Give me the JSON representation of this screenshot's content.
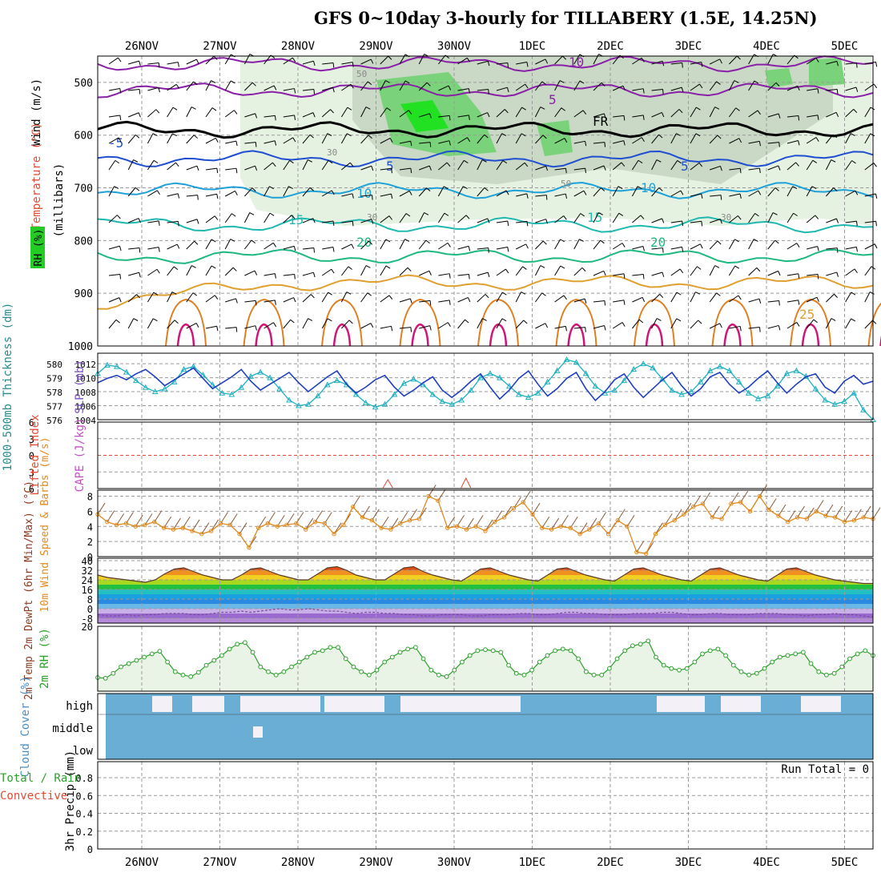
{
  "title": "GFS 0~10day 3-hourly for TILLABERY (1.5E, 14.25N)",
  "dates": [
    "26NOV",
    "27NOV",
    "28NOV",
    "29NOV",
    "30NOV",
    "1DEC",
    "2DEC",
    "3DEC",
    "4DEC",
    "5DEC"
  ],
  "colors": {
    "temp": "#e34a33",
    "wind": "#000000",
    "rh": "#2ca02c",
    "thickness": "#1f3fbf",
    "slp": "#1fb0c0",
    "lifted": "#e34a33",
    "cape": "#c050c0",
    "wind10": "#e08a1e",
    "temp2m": "#e34a33",
    "dewpt": "#7a4f9a",
    "rh2m": "#2ca02c",
    "cloud": "#6aaed6",
    "precip_total": "#2ca02c",
    "precip_conv": "#e34a33"
  },
  "chart_data": [
    {
      "id": "upper-air",
      "type": "heatmap",
      "ylabel_parts": [
        "Wind (m/s)",
        "Temperature (°C)",
        "RH (%)",
        "(millibars)"
      ],
      "yticks": [
        500,
        600,
        700,
        800,
        900,
        1000
      ],
      "ylim": [
        450,
        1000
      ],
      "contour_labels": [
        "10",
        "5",
        "FR",
        "-5",
        "5",
        "5",
        "10",
        "10",
        "15",
        "15",
        "20",
        "20",
        "25",
        "50",
        "30",
        "30",
        "50",
        "30"
      ],
      "isotherms": [
        {
          "value": -10,
          "pressure": 465
        },
        {
          "value": -5,
          "pressure": 515
        },
        {
          "value": 0,
          "pressure": 590
        },
        {
          "value": 5,
          "pressure": 645
        },
        {
          "value": 10,
          "pressure": 705
        },
        {
          "value": 15,
          "pressure": 770
        },
        {
          "value": 20,
          "pressure": 830
        },
        {
          "value": 25,
          "pressure": 880
        }
      ]
    },
    {
      "id": "thickness-slp",
      "type": "line",
      "ylabel_thickness": "1000-500mb Thickness (dm)",
      "ylabel_slp": "SLP (mb)",
      "thickness_ticks": [
        576,
        577,
        578,
        579,
        580
      ],
      "slp_ticks": [
        1004,
        1006,
        1008,
        1010,
        1012
      ],
      "slp_ylim": [
        1004,
        1013.5
      ],
      "thickness": [
        578.5,
        578.8,
        579.0,
        578.7,
        579.1,
        579.4,
        578.9,
        578.3,
        578.7,
        579.1,
        579.5,
        578.8,
        578.1,
        578.5,
        578.9,
        579.4,
        578.6,
        578.0,
        578.4,
        578.8,
        579.2,
        578.5,
        577.9,
        578.4,
        578.9,
        579.3,
        578.4,
        577.8,
        578.2,
        578.7,
        579.0,
        578.2,
        577.6,
        578.0,
        578.5,
        578.9,
        578.0,
        577.5,
        578.0,
        578.6,
        579.1,
        578.2,
        577.4,
        578.0,
        578.8,
        579.3,
        578.4,
        577.6,
        578.1,
        578.8,
        579.2,
        578.1,
        577.3,
        577.9,
        578.7,
        579.1,
        578.2,
        577.5,
        578.1,
        578.7,
        579.2,
        578.3,
        577.6,
        578.1,
        578.9,
        579.2,
        578.4,
        577.8,
        578.2,
        578.8,
        579.3,
        578.5,
        577.8,
        578.4,
        578.9,
        579.1,
        578.2,
        577.8,
        578.6,
        579.0,
        578.4,
        578.6
      ],
      "slp": [
        1010.6,
        1011.8,
        1011.6,
        1010.8,
        1009.6,
        1008.6,
        1008.0,
        1008.4,
        1009.4,
        1011.2,
        1011.6,
        1010.4,
        1009.0,
        1007.8,
        1007.6,
        1008.6,
        1010.2,
        1010.8,
        1010.0,
        1008.4,
        1006.8,
        1006.0,
        1006.2,
        1007.4,
        1009.0,
        1009.6,
        1009.0,
        1007.6,
        1006.4,
        1005.8,
        1006.2,
        1007.6,
        1009.2,
        1009.8,
        1009.0,
        1007.6,
        1006.6,
        1006.2,
        1006.8,
        1008.2,
        1010.0,
        1010.6,
        1010.0,
        1008.8,
        1007.6,
        1007.2,
        1007.8,
        1009.4,
        1011.0,
        1012.6,
        1012.2,
        1010.6,
        1008.8,
        1007.8,
        1008.2,
        1009.6,
        1011.2,
        1012.0,
        1011.4,
        1009.8,
        1008.2,
        1007.6,
        1008.0,
        1009.4,
        1011.0,
        1011.6,
        1011.0,
        1009.4,
        1007.8,
        1007.0,
        1007.4,
        1008.8,
        1010.6,
        1011.0,
        1010.2,
        1008.4,
        1006.8,
        1006.2,
        1006.6,
        1007.8,
        1005.4,
        1004.0
      ]
    },
    {
      "id": "lifted-cape",
      "type": "line",
      "ylabel_lifted": "Lifted Index",
      "ylabel_cape": "CAPE (J/kg)",
      "yticks": [
        -6,
        -3,
        0,
        3,
        6
      ],
      "ytick_labels": [
        "6",
        "3",
        "0",
        "3",
        "6"
      ],
      "ylim": [
        -6,
        6
      ],
      "cape_spikes": [
        {
          "day": 3.1,
          "value": 1
        },
        {
          "day": 4.1,
          "value": 1.2
        }
      ]
    },
    {
      "id": "wind10m",
      "type": "line",
      "ylabel": "10m Wind Speed & Barbs (m/s)",
      "yticks": [
        0,
        2,
        4,
        6,
        8
      ],
      "ylim": [
        0,
        8.8
      ],
      "values": [
        5.6,
        4.6,
        4.2,
        4.4,
        4.0,
        4.2,
        4.6,
        3.8,
        3.6,
        3.8,
        3.4,
        3.0,
        3.4,
        4.4,
        4.2,
        3.0,
        1.2,
        3.8,
        4.4,
        4.0,
        4.2,
        4.4,
        3.6,
        4.6,
        4.4,
        3.0,
        4.2,
        6.6,
        5.2,
        4.8,
        3.8,
        3.6,
        4.4,
        4.8,
        5.0,
        8.0,
        7.4,
        3.8,
        4.0,
        3.6,
        4.0,
        3.4,
        4.6,
        5.2,
        6.4,
        7.2,
        5.6,
        3.8,
        3.6,
        4.0,
        3.8,
        3.0,
        3.6,
        4.4,
        3.0,
        4.8,
        4.0,
        0.6,
        0.4,
        3.0,
        4.2,
        4.8,
        5.6,
        6.6,
        7.0,
        5.2,
        5.0,
        7.0,
        7.2,
        6.0,
        8.0,
        6.2,
        5.4,
        4.6,
        5.2,
        5.0,
        6.0,
        5.4,
        5.2,
        4.6,
        4.8,
        5.2,
        5.0
      ]
    },
    {
      "id": "temp-dewpt",
      "type": "area",
      "ylabel": "2m Temp 2m DewPt (6hr Min/Max) (°C)",
      "yticks": [
        -8,
        0,
        8,
        16,
        24,
        32,
        40
      ],
      "ylim": [
        -12,
        42
      ],
      "temp": [
        28,
        26,
        25,
        24,
        23,
        22,
        24,
        29,
        33,
        34,
        31,
        28,
        26,
        24,
        24,
        28,
        33,
        34,
        31,
        28,
        26,
        24,
        24,
        29,
        34,
        35,
        32,
        28,
        26,
        24,
        24,
        29,
        34,
        35,
        31,
        28,
        26,
        24,
        23,
        28,
        33,
        34,
        31,
        28,
        26,
        24,
        23,
        28,
        33,
        34,
        31,
        28,
        26,
        24,
        23,
        28,
        33,
        34,
        31,
        28,
        26,
        24,
        23,
        28,
        33,
        34,
        31,
        28,
        26,
        24,
        23,
        28,
        33,
        34,
        31,
        28,
        26,
        24,
        23,
        22,
        21,
        21
      ],
      "dewpt": [
        -5,
        -6,
        -6,
        -5,
        -6,
        -5,
        -5,
        -4,
        -4,
        -4,
        -5,
        -5,
        -4,
        -3,
        -3,
        -2,
        -3,
        -2,
        -1,
        0,
        -1,
        -1,
        0,
        -1,
        -2,
        -2,
        -3,
        -4,
        -3,
        -3,
        -4,
        -4,
        -5,
        -5,
        -6,
        -6,
        -5,
        -5,
        -5,
        -6,
        -6,
        -5,
        -5,
        -5,
        -4,
        -4,
        -5,
        -5,
        -4,
        -3,
        -3,
        -4,
        -4,
        -5,
        -5,
        -5,
        -4,
        -4,
        -4,
        -3,
        -3,
        -4,
        -5,
        -5,
        -4,
        -4,
        -5,
        -5,
        -5,
        -4,
        -4,
        -4,
        -5,
        -5,
        -6,
        -5,
        -5,
        -4,
        -5,
        -5,
        -6,
        -7
      ]
    },
    {
      "id": "rh2m",
      "type": "area",
      "ylabel": "2m RH (%)",
      "yticks": [
        20
      ],
      "ylim": [
        0,
        20
      ],
      "values": [
        4.2,
        4.0,
        5.5,
        7.5,
        8.5,
        9.5,
        10.5,
        11.5,
        12.3,
        9.0,
        6.0,
        5.0,
        4.5,
        5.8,
        8.0,
        9.5,
        11.0,
        13.0,
        14.5,
        15.0,
        12.0,
        7.5,
        6.0,
        5.0,
        6.0,
        7.5,
        9.0,
        10.5,
        12.0,
        12.5,
        13.5,
        13.5,
        10.0,
        7.5,
        6.0,
        5.0,
        6.5,
        9.0,
        10.5,
        12.0,
        13.0,
        13.5,
        10.0,
        6.5,
        5.0,
        4.5,
        6.5,
        9.0,
        11.0,
        12.5,
        12.8,
        12.5,
        12.0,
        8.0,
        5.5,
        5.0,
        6.5,
        9.0,
        11.0,
        12.5,
        13.0,
        12.5,
        10.0,
        6.0,
        5.0,
        5.0,
        7.0,
        10.0,
        12.5,
        14.0,
        14.5,
        15.5,
        10.5,
        8.0,
        7.0,
        6.5,
        7.0,
        9.0,
        11.5,
        12.5,
        13.0,
        11.0,
        8.0,
        6.0,
        5.0,
        5.5,
        7.0,
        9.0,
        10.5,
        11.0,
        11.5,
        12.0,
        8.5,
        6.0,
        5.0,
        5.5,
        7.5,
        10.0,
        11.5,
        12.5,
        11.0
      ]
    },
    {
      "id": "cloud",
      "type": "heatmap",
      "ylabel": "Cloud Cover (%)",
      "levels": [
        "high",
        "middle",
        "low"
      ]
    },
    {
      "id": "precip",
      "type": "bar",
      "ylabel_total": "Total / Rain",
      "ylabel_conv": "Convective",
      "ylabel": "3hr Precip (mm)",
      "yticks": [
        0,
        0.2,
        0.4,
        0.6,
        0.8
      ],
      "ylim": [
        0,
        0.98
      ],
      "run_total": "Run Total = 0"
    }
  ]
}
